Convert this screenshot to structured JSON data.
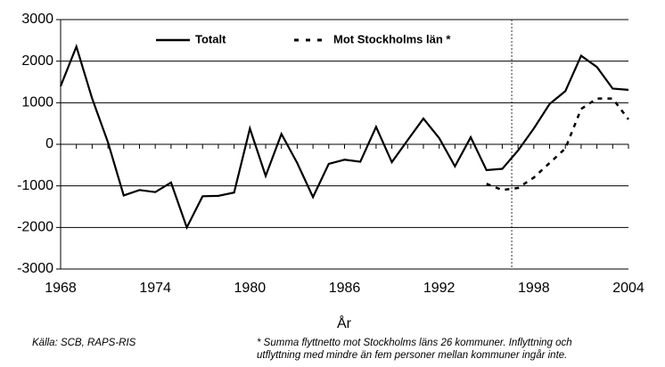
{
  "chart_data": {
    "type": "line",
    "x": [
      1968,
      1969,
      1970,
      1971,
      1972,
      1973,
      1974,
      1975,
      1976,
      1977,
      1978,
      1979,
      1980,
      1981,
      1982,
      1983,
      1984,
      1985,
      1986,
      1987,
      1988,
      1989,
      1990,
      1991,
      1992,
      1993,
      1994,
      1995,
      1996,
      1997,
      1998,
      1999,
      2000,
      2001,
      2002,
      2003,
      2004
    ],
    "series": [
      {
        "name": "Totalt",
        "color": "#000000",
        "dash": false,
        "values": [
          1400,
          2350,
          1100,
          50,
          -1230,
          -1100,
          -1150,
          -920,
          -2000,
          -1250,
          -1240,
          -1160,
          380,
          -760,
          250,
          -450,
          -1270,
          -470,
          -370,
          -420,
          420,
          -430,
          100,
          620,
          150,
          -530,
          170,
          -620,
          -590,
          -150,
          380,
          970,
          1280,
          2130,
          1860,
          1340,
          1310
        ]
      },
      {
        "name": "Mot Stockholms län *",
        "color": "#000000",
        "dash": true,
        "values": [
          null,
          null,
          null,
          null,
          null,
          null,
          null,
          null,
          null,
          null,
          null,
          null,
          null,
          null,
          null,
          null,
          null,
          null,
          null,
          null,
          null,
          null,
          null,
          null,
          null,
          null,
          null,
          -950,
          -1100,
          -1050,
          -800,
          -450,
          -100,
          850,
          1100,
          1100,
          600
        ]
      }
    ],
    "xlim": [
      1968,
      2004
    ],
    "xticks": [
      1968,
      1974,
      1980,
      1986,
      1992,
      1998,
      2004
    ],
    "ylim": [
      -3000,
      3000
    ],
    "yticks": [
      -3000,
      -2000,
      -1000,
      0,
      1000,
      2000,
      3000
    ],
    "grid": true,
    "vline": 1996.6,
    "xlabel": "År",
    "source": "Källa: SCB, RAPS-RIS",
    "footnote": [
      "* Summa flyttnetto mot Stockholms läns 26 kommuner. Inflyttning och",
      "utflyttning med mindre än fem personer mellan kommuner ingår inte."
    ]
  }
}
